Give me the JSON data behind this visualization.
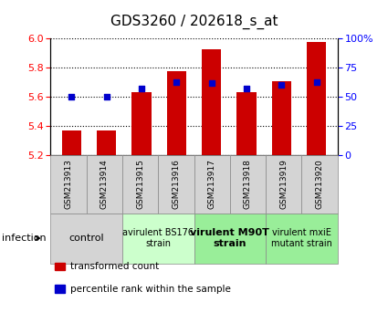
{
  "title": "GDS3260 / 202618_s_at",
  "samples": [
    "GSM213913",
    "GSM213914",
    "GSM213915",
    "GSM213916",
    "GSM213917",
    "GSM213918",
    "GSM213919",
    "GSM213920"
  ],
  "bar_values": [
    5.37,
    5.37,
    5.63,
    5.78,
    5.93,
    5.63,
    5.71,
    5.98
  ],
  "dot_values": [
    50,
    50,
    57,
    63,
    62,
    57,
    60,
    63
  ],
  "bar_bottom": 5.2,
  "ylim_left": [
    5.2,
    6.0
  ],
  "ylim_right": [
    0,
    100
  ],
  "yticks_left": [
    5.2,
    5.4,
    5.6,
    5.8,
    6.0
  ],
  "yticks_right": [
    0,
    25,
    50,
    75,
    100
  ],
  "ytick_labels_right": [
    "0",
    "25",
    "50",
    "75",
    "100%"
  ],
  "bar_color": "#cc0000",
  "dot_color": "#0000cc",
  "groups": [
    {
      "label": "control",
      "indices": [
        0,
        1
      ],
      "color": "#d4d4d4",
      "fontsize": 8,
      "bold": false
    },
    {
      "label": "avirulent BS176\nstrain",
      "indices": [
        2,
        3
      ],
      "color": "#ccffcc",
      "fontsize": 7,
      "bold": false
    },
    {
      "label": "virulent M90T\nstrain",
      "indices": [
        4,
        5
      ],
      "color": "#99ee99",
      "fontsize": 8,
      "bold": true
    },
    {
      "label": "virulent mxiE\nmutant strain",
      "indices": [
        6,
        7
      ],
      "color": "#99ee99",
      "fontsize": 7,
      "bold": false
    }
  ],
  "infection_label": "infection",
  "legend_items": [
    {
      "color": "#cc0000",
      "label": "transformed count"
    },
    {
      "color": "#0000cc",
      "label": "percentile rank within the sample"
    }
  ],
  "bar_width": 0.55,
  "grid_linestyle": "dotted",
  "background_color": "#ffffff",
  "tick_label_fontsize": 8,
  "title_fontsize": 11,
  "sample_box_color": "#d4d4d4"
}
